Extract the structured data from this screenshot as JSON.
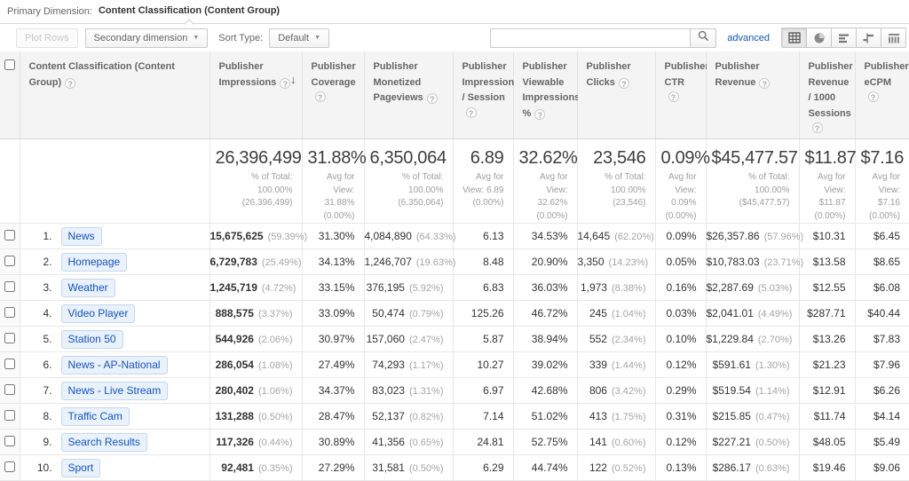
{
  "primary_dimension": {
    "label": "Primary Dimension:",
    "selected": "Content Classification (Content Group)"
  },
  "toolbar": {
    "plot_rows_label": "Plot Rows",
    "secondary_dimension_label": "Secondary dimension",
    "sort_type_label": "Sort Type:",
    "sort_type_value": "Default",
    "search_value": "",
    "search_placeholder": "",
    "advanced_label": "advanced",
    "view_buttons": [
      "table-view",
      "percentage-view",
      "performance-view",
      "comparison-view",
      "pivot-view"
    ],
    "active_view": "table-view"
  },
  "icons": {
    "help": "?",
    "sort_desc": "↓",
    "dropdown": "▼"
  },
  "colors": {
    "link_blue": "#1155cc",
    "pill_bg": "#e9f1fa",
    "pill_border": "#c3d9ed",
    "header_bg": "#f4f4f4",
    "muted_gray": "#9e9e9e"
  },
  "table": {
    "columns": [
      {
        "id": "content",
        "label": "Content Classification (Content Group)",
        "help": true
      },
      {
        "id": "impressions",
        "label": "Publisher Impressions",
        "help": true,
        "sorted": "desc"
      },
      {
        "id": "coverage",
        "label": "Publisher Coverage",
        "help": true
      },
      {
        "id": "monetized",
        "label": "Publisher Monetized Pageviews",
        "help": true
      },
      {
        "id": "imps_session",
        "label": "Publisher Impressions / Session",
        "help": true
      },
      {
        "id": "viewable",
        "label": "Publisher Viewable Impressions %",
        "help": true
      },
      {
        "id": "clicks",
        "label": "Publisher Clicks",
        "help": true
      },
      {
        "id": "ctr",
        "label": "Publisher CTR",
        "help": true
      },
      {
        "id": "revenue",
        "label": "Publisher Revenue",
        "help": true
      },
      {
        "id": "rev_1000",
        "label": "Publisher Revenue / 1000 Sessions",
        "help": true
      },
      {
        "id": "ecpm",
        "label": "Publisher eCPM",
        "help": true
      }
    ],
    "summary": {
      "impressions": {
        "value": "26,396,499",
        "sub": "% of Total: 100.00% (26,396,499)"
      },
      "coverage": {
        "value": "31.88%",
        "sub": "Avg for View: 31.88% (0.00%)"
      },
      "monetized": {
        "value": "6,350,064",
        "sub": "% of Total: 100.00% (6,350,064)"
      },
      "imps_session": {
        "value": "6.89",
        "sub": "Avg for View: 6.89 (0.00%)"
      },
      "viewable": {
        "value": "32.62%",
        "sub": "Avg for View: 32.62% (0.00%)"
      },
      "clicks": {
        "value": "23,546",
        "sub": "% of Total: 100.00% (23,546)"
      },
      "ctr": {
        "value": "0.09%",
        "sub": "Avg for View: 0.09% (0.00%)"
      },
      "revenue": {
        "value": "$45,477.57",
        "sub": "% of Total: 100.00% ($45,477.57)"
      },
      "rev_1000": {
        "value": "$11.87",
        "sub": "Avg for View: $11.87 (0.00%)"
      },
      "ecpm": {
        "value": "$7.16",
        "sub": "Avg for View: $7.16 (0.00%)"
      }
    },
    "rows": [
      {
        "rank": "1.",
        "label": "News",
        "impressions": "15,675,625",
        "impressions_pct": "(59.39%)",
        "coverage": "31.30%",
        "monetized": "4,084,890",
        "monetized_pct": "(64.33%)",
        "imps_session": "6.13",
        "viewable": "34.53%",
        "clicks": "14,645",
        "clicks_pct": "(62.20%)",
        "ctr": "0.09%",
        "revenue": "$26,357.86",
        "revenue_pct": "(57.96%)",
        "rev_1000": "$10.31",
        "ecpm": "$6.45"
      },
      {
        "rank": "2.",
        "label": "Homepage",
        "impressions": "6,729,783",
        "impressions_pct": "(25.49%)",
        "coverage": "34.13%",
        "monetized": "1,246,707",
        "monetized_pct": "(19.63%)",
        "imps_session": "8.48",
        "viewable": "20.90%",
        "clicks": "3,350",
        "clicks_pct": "(14.23%)",
        "ctr": "0.05%",
        "revenue": "$10,783.03",
        "revenue_pct": "(23.71%)",
        "rev_1000": "$13.58",
        "ecpm": "$8.65"
      },
      {
        "rank": "3.",
        "label": "Weather",
        "impressions": "1,245,719",
        "impressions_pct": "(4.72%)",
        "coverage": "33.15%",
        "monetized": "376,195",
        "monetized_pct": "(5.92%)",
        "imps_session": "6.83",
        "viewable": "36.03%",
        "clicks": "1,973",
        "clicks_pct": "(8.38%)",
        "ctr": "0.16%",
        "revenue": "$2,287.69",
        "revenue_pct": "(5.03%)",
        "rev_1000": "$12.55",
        "ecpm": "$6.08"
      },
      {
        "rank": "4.",
        "label": "Video Player",
        "impressions": "888,575",
        "impressions_pct": "(3.37%)",
        "coverage": "33.09%",
        "monetized": "50,474",
        "monetized_pct": "(0.79%)",
        "imps_session": "125.26",
        "viewable": "46.72%",
        "clicks": "245",
        "clicks_pct": "(1.04%)",
        "ctr": "0.03%",
        "revenue": "$2,041.01",
        "revenue_pct": "(4.49%)",
        "rev_1000": "$287.71",
        "ecpm": "$40.44"
      },
      {
        "rank": "5.",
        "label": "Station 50",
        "impressions": "544,926",
        "impressions_pct": "(2.06%)",
        "coverage": "30.97%",
        "monetized": "157,060",
        "monetized_pct": "(2.47%)",
        "imps_session": "5.87",
        "viewable": "38.94%",
        "clicks": "552",
        "clicks_pct": "(2.34%)",
        "ctr": "0.10%",
        "revenue": "$1,229.84",
        "revenue_pct": "(2.70%)",
        "rev_1000": "$13.26",
        "ecpm": "$7.83"
      },
      {
        "rank": "6.",
        "label": "News - AP-National",
        "impressions": "286,054",
        "impressions_pct": "(1.08%)",
        "coverage": "27.49%",
        "monetized": "74,293",
        "monetized_pct": "(1.17%)",
        "imps_session": "10.27",
        "viewable": "39.02%",
        "clicks": "339",
        "clicks_pct": "(1.44%)",
        "ctr": "0.12%",
        "revenue": "$591.61",
        "revenue_pct": "(1.30%)",
        "rev_1000": "$21.23",
        "ecpm": "$7.96"
      },
      {
        "rank": "7.",
        "label": "News - Live Stream",
        "impressions": "280,402",
        "impressions_pct": "(1.06%)",
        "coverage": "34.37%",
        "monetized": "83,023",
        "monetized_pct": "(1.31%)",
        "imps_session": "6.97",
        "viewable": "42.68%",
        "clicks": "806",
        "clicks_pct": "(3.42%)",
        "ctr": "0.29%",
        "revenue": "$519.54",
        "revenue_pct": "(1.14%)",
        "rev_1000": "$12.91",
        "ecpm": "$6.26"
      },
      {
        "rank": "8.",
        "label": "Traffic Cam",
        "impressions": "131,288",
        "impressions_pct": "(0.50%)",
        "coverage": "28.47%",
        "monetized": "52,137",
        "monetized_pct": "(0.82%)",
        "imps_session": "7.14",
        "viewable": "51.02%",
        "clicks": "413",
        "clicks_pct": "(1.75%)",
        "ctr": "0.31%",
        "revenue": "$215.85",
        "revenue_pct": "(0.47%)",
        "rev_1000": "$11.74",
        "ecpm": "$4.14"
      },
      {
        "rank": "9.",
        "label": "Search Results",
        "impressions": "117,326",
        "impressions_pct": "(0.44%)",
        "coverage": "30.89%",
        "monetized": "41,356",
        "monetized_pct": "(0.65%)",
        "imps_session": "24.81",
        "viewable": "52.75%",
        "clicks": "141",
        "clicks_pct": "(0.60%)",
        "ctr": "0.12%",
        "revenue": "$227.21",
        "revenue_pct": "(0.50%)",
        "rev_1000": "$48.05",
        "ecpm": "$5.49"
      },
      {
        "rank": "10.",
        "label": "Sport",
        "impressions": "92,481",
        "impressions_pct": "(0.35%)",
        "coverage": "27.29%",
        "monetized": "31,581",
        "monetized_pct": "(0.50%)",
        "imps_session": "6.29",
        "viewable": "44.74%",
        "clicks": "122",
        "clicks_pct": "(0.52%)",
        "ctr": "0.13%",
        "revenue": "$286.17",
        "revenue_pct": "(0.63%)",
        "rev_1000": "$19.46",
        "ecpm": "$9.06"
      }
    ]
  }
}
